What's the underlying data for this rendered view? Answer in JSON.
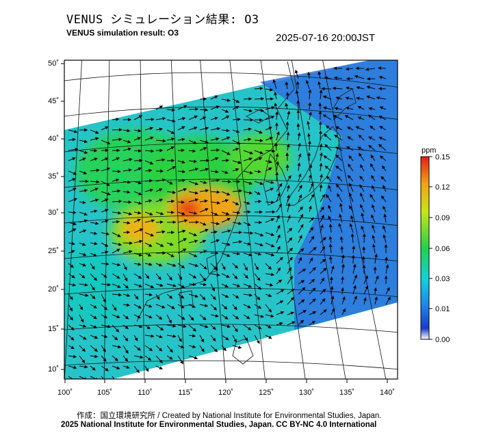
{
  "header": {
    "title_jp": "VENUS シミュレーション結果: O3",
    "title_en": "VENUS simulation result: O3",
    "timestamp": "2025-07-16 20:00JST"
  },
  "map": {
    "lat_labels": [
      "50˚",
      "45˚",
      "40˚",
      "35˚",
      "30˚",
      "25˚",
      "20˚",
      "15˚",
      "10˚"
    ],
    "lon_labels": [
      "100˚",
      "105˚",
      "110˚",
      "115˚",
      "120˚",
      "125˚",
      "130˚",
      "135˚",
      "140˚"
    ],
    "colorbar": {
      "unit": "ppm",
      "ticks": [
        "0.15",
        "0.12",
        "0.09",
        "0.06",
        "0.03",
        "0.01",
        "0.00"
      ],
      "colors": [
        "#ffffff",
        "#1a3cc8",
        "#1e8cf0",
        "#10d2dc",
        "#22d24a",
        "#c8e614",
        "#f0a414",
        "#e61e14"
      ]
    }
  },
  "footer": {
    "credit_line": "作成：国立環境研究所 / Created by National Institute for Environmental Studies, Japan.",
    "copyright_line": "2025 National Institute for Environmental Studies, Japan. CC BY-NC 4.0 International"
  }
}
